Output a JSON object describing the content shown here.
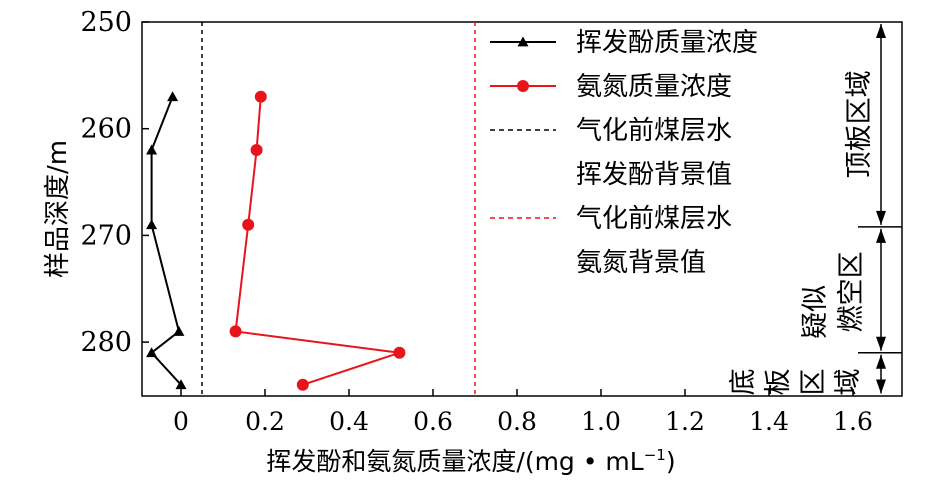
{
  "chart_data": {
    "type": "line",
    "xlabel": "挥发酚和氨氮质量浓度/(mg • mL",
    "xlabel_sup": "−1",
    "xlabel_close": ")",
    "ylabel": "样品深度/m",
    "xlim": [
      -0.09,
      1.71
    ],
    "ylim": [
      250,
      285
    ],
    "y_inverted": true,
    "x_ticks": [
      0,
      0.2,
      0.4,
      0.6,
      0.8,
      1.0,
      1.2,
      1.4,
      1.6
    ],
    "x_tick_labels": [
      "0",
      "0.2",
      "0.4",
      "0.6",
      "0.8",
      "1.0",
      "1.2",
      "1.4",
      "1.6"
    ],
    "y_ticks": [
      250,
      260,
      270,
      280
    ],
    "y_tick_labels": [
      "250",
      "260",
      "270",
      "280"
    ],
    "series": [
      {
        "name": "挥发酚质量浓度",
        "color": "#000000",
        "marker": "triangle",
        "points": [
          [
            -0.02,
            257
          ],
          [
            -0.07,
            262
          ],
          [
            -0.07,
            269
          ],
          [
            -0.005,
            279
          ],
          [
            -0.07,
            281
          ],
          [
            0.0,
            284
          ]
        ]
      },
      {
        "name": "氨氮质量浓度",
        "color": "#e8141c",
        "marker": "circle",
        "points": [
          [
            0.19,
            257
          ],
          [
            0.18,
            262
          ],
          [
            0.16,
            269
          ],
          [
            0.13,
            279
          ],
          [
            0.52,
            281
          ],
          [
            0.29,
            284
          ]
        ]
      }
    ],
    "reference_lines": [
      {
        "name": "气化前煤层水挥发酚背景值",
        "label_lines": [
          "气化前煤层水",
          "挥发酚背景值"
        ],
        "x": 0.05,
        "color": "#000000",
        "style": "dashed"
      },
      {
        "name": "气化前煤层水氨氮背景值",
        "label_lines": [
          "气化前煤层水",
          "氨氮背景值"
        ],
        "x": 0.7,
        "color": "#e8141c",
        "style": "dashed"
      }
    ],
    "zones": [
      {
        "label": "顶板区域",
        "from": 250,
        "to": 269.2
      },
      {
        "label_lines": [
          "疑似",
          "燃空区"
        ],
        "from": 269.2,
        "to": 281
      },
      {
        "label_lines": [
          "底",
          "板",
          "区",
          "域"
        ],
        "from": 281,
        "to": 285
      }
    ],
    "grid": false,
    "legend_position": "top-right"
  }
}
